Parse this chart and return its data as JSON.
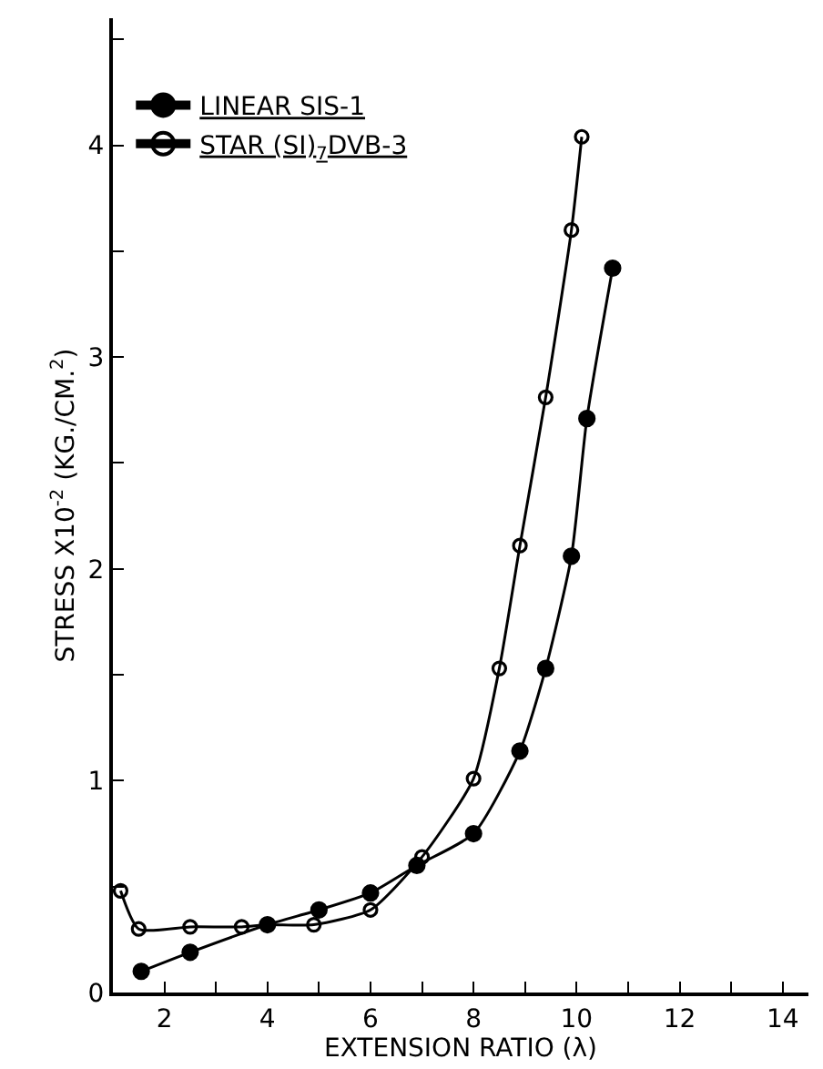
{
  "chart_data": {
    "type": "line",
    "xlabel": "EXTENSION RATIO (λ)",
    "ylabel": "STRESS X10$^{-2}$ (KG./CM.$^{2}$)",
    "series": [
      {
        "name": "LINEAR SIS-1",
        "color": "#000000",
        "marker": "circle",
        "x": [
          1.55,
          2.5,
          4.0,
          5.0,
          6.0,
          6.9,
          8.0,
          8.9,
          9.4,
          9.9,
          10.2,
          10.7
        ],
        "values": [
          0.1,
          0.19,
          0.32,
          0.39,
          0.47,
          0.6,
          0.75,
          1.14,
          1.53,
          2.06,
          2.71,
          3.42
        ]
      },
      {
        "name": "STAR (SI)$_{7}$DVB-3",
        "color": "#000000",
        "marker": "circle",
        "x": [
          1.15,
          1.5,
          2.5,
          3.5,
          4.0,
          4.9,
          6.0,
          7.0,
          8.0,
          8.5,
          8.9,
          9.4,
          9.9,
          10.1
        ],
        "values": [
          0.48,
          0.3,
          0.31,
          0.31,
          0.32,
          0.32,
          0.39,
          0.64,
          1.01,
          1.53,
          2.11,
          2.81,
          3.6,
          4.04
        ]
      }
    ],
    "xlim": [
      1,
      14.5
    ],
    "xticks": [
      {
        "value": 1,
        "label": null
      },
      2,
      {
        "value": 3,
        "label": null
      },
      4,
      {
        "value": 5,
        "label": null
      },
      6,
      {
        "value": 7,
        "label": null
      },
      8,
      {
        "value": 9,
        "label": null
      },
      10,
      {
        "value": 11,
        "label": null
      },
      12,
      {
        "value": 13,
        "label": null
      },
      14
    ],
    "ylim": [
      0,
      4.6
    ],
    "yticks": [
      0,
      {
        "value": 0.5,
        "label": null
      },
      1,
      {
        "value": 1.5,
        "label": null
      },
      2,
      {
        "value": 2.5,
        "label": null
      },
      3,
      {
        "value": 3.5,
        "label": null
      },
      4,
      {
        "value": 4.5,
        "label": null
      }
    ],
    "grid": false,
    "legend": "top left",
    "line_style": "solid"
  }
}
